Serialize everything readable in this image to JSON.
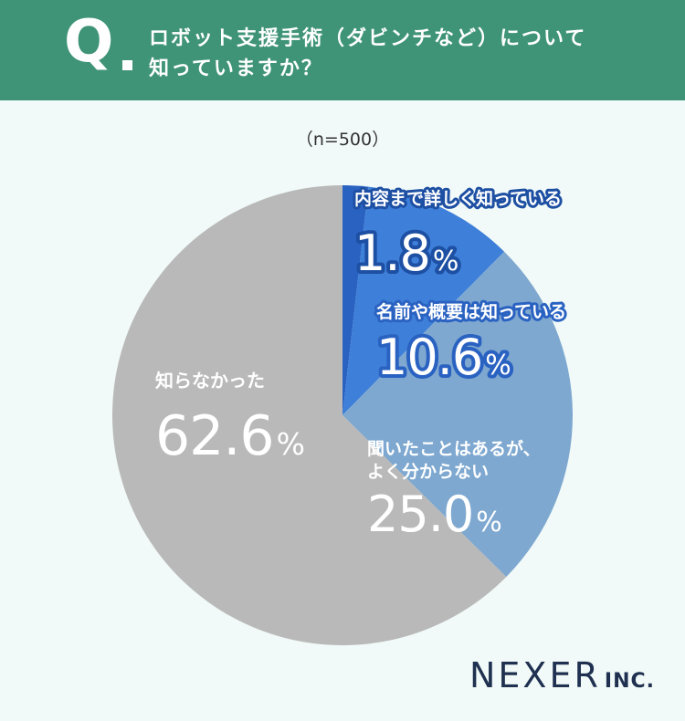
{
  "header": {
    "q_mark": "Q",
    "question_line1": "ロボット支援手術（ダビンチなど）について",
    "question_line2": "知っていますか？"
  },
  "sample_size": "（n=500）",
  "chart_data": {
    "type": "pie",
    "title": "ロボット支援手術（ダビンチなど）について知っていますか？",
    "unit": "%",
    "slices": [
      {
        "label": [
          "内容まで詳しく知っている"
        ],
        "value": 1.8,
        "display": "1.8",
        "color": "#2a62c2"
      },
      {
        "label": [
          "名前や概要は知っている"
        ],
        "value": 10.6,
        "display": "10.6",
        "color": "#3d7fd9"
      },
      {
        "label": [
          "聞いたことはあるが、",
          "よく分からない"
        ],
        "value": 25.0,
        "display": "25.0",
        "color": "#7ea8d0"
      },
      {
        "label": [
          "知らなかった"
        ],
        "value": 62.6,
        "display": "62.6",
        "color": "#b9b9b9"
      }
    ]
  },
  "logo": {
    "main": "NEXER",
    "sub": "INC."
  }
}
